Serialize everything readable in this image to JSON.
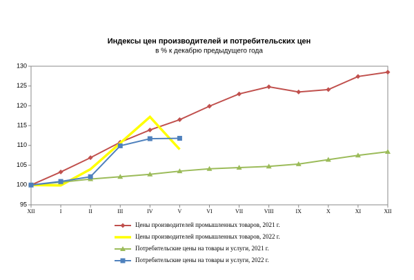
{
  "chart_data": {
    "type": "line",
    "title": "Индексы цен производителей и потребительских цен",
    "subtitle": "в % к декабрю предыдущего года",
    "categories": [
      "XII",
      "I",
      "II",
      "III",
      "IV",
      "V",
      "VI",
      "VII",
      "VIII",
      "IX",
      "X",
      "XI",
      "XII"
    ],
    "ylim": [
      95,
      130
    ],
    "yticks": [
      95,
      100,
      105,
      110,
      115,
      120,
      125,
      130
    ],
    "grid": false,
    "legend": "bottom",
    "series": [
      {
        "name": "Цены производителей промышленных товаров, 2021 г.",
        "color": "#c0504d",
        "marker": "diamond",
        "values": [
          100,
          103.3,
          106.9,
          110.8,
          113.9,
          116.5,
          119.9,
          123.0,
          124.8,
          123.5,
          124.1,
          127.4,
          128.5
        ]
      },
      {
        "name": "Цены производителей промышленных товаров, 2022 г.",
        "color": "#ffff00",
        "marker": "none",
        "values": [
          100,
          99.9,
          104.0,
          110.6,
          117.2,
          109.0,
          null,
          null,
          null,
          null,
          null,
          null,
          null
        ]
      },
      {
        "name": "Потребительские цены на товары и услуги, 2021 г.",
        "color": "#9bbb59",
        "marker": "triangle",
        "values": [
          100,
          100.7,
          101.5,
          102.1,
          102.7,
          103.5,
          104.1,
          104.4,
          104.7,
          105.3,
          106.4,
          107.5,
          108.4
        ]
      },
      {
        "name": "Потребительские цены на товары и услуги, 2022 г.",
        "color": "#4f81bd",
        "marker": "square",
        "values": [
          100,
          100.9,
          102.1,
          109.9,
          111.7,
          111.8,
          null,
          null,
          null,
          null,
          null,
          null,
          null
        ]
      }
    ]
  }
}
